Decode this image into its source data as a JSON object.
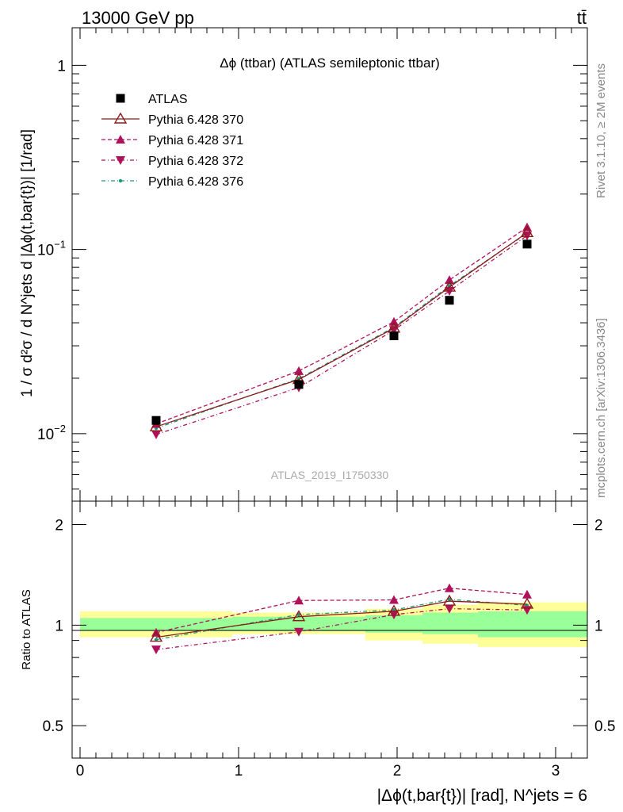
{
  "header": {
    "energy": "13000 GeV pp",
    "process": "tt̄"
  },
  "side": {
    "rivet": "Rivet 3.1.10, ≥ 2M events",
    "mcplots": "mcplots.cern.ch [arXiv:1306.3436]"
  },
  "chart_data": [
    {
      "type": "scatter",
      "title": "Δϕ (ttbar) (ATLAS semileptonic ttbar)",
      "ylabel": "1 / σ d²σ / d N^jets d |Δϕ(t,bar{t})| [1/rad]",
      "xlabel": "|Δϕ(t,bar{t})| [rad], N^jets = 6",
      "watermark": "ATLAS_2019_I1750330",
      "yscale": "log",
      "xlim": [
        -0.05,
        3.2
      ],
      "ylim": [
        0.0043,
        1.6
      ],
      "x_ticks": [
        "0",
        "1",
        "2",
        "3"
      ],
      "y_ticks": [
        "1",
        "10^-1",
        "10^-2"
      ],
      "legend": "top-left",
      "x": [
        0.48,
        1.38,
        1.98,
        2.33,
        2.82
      ],
      "bins": [
        [
          0,
          0.96
        ],
        [
          0.96,
          1.8
        ],
        [
          1.8,
          2.16
        ],
        [
          2.16,
          2.51
        ],
        [
          2.51,
          3.2
        ]
      ],
      "series": [
        {
          "name": "ATLAS",
          "values": [
            0.0118,
            0.0185,
            0.034,
            0.053,
            0.107
          ],
          "color": "#000000",
          "marker": "square"
        },
        {
          "name": "Pythia 6.428 370",
          "values": [
            0.0109,
            0.0197,
            0.0374,
            0.0625,
            0.1235
          ],
          "color": "#8b1a1a",
          "marker": "open-triangle",
          "dash": "solid"
        },
        {
          "name": "Pythia 6.428 371",
          "values": [
            0.0113,
            0.0219,
            0.0405,
            0.0683,
            0.132
          ],
          "color": "#b0125a",
          "marker": "triangle-up",
          "dash": "dashed"
        },
        {
          "name": "Pythia 6.428 372",
          "values": [
            0.0099,
            0.0178,
            0.0365,
            0.0595,
            0.119
          ],
          "color": "#b0125a",
          "marker": "triangle-down",
          "dash": "dashdot"
        },
        {
          "name": "Pythia 6.428 376",
          "values": [
            0.0107,
            0.0199,
            0.0378,
            0.0635,
            0.1225
          ],
          "color": "#1a9a7a",
          "marker": "dot",
          "dash": "dashdot"
        }
      ]
    },
    {
      "type": "scatter",
      "ylabel": "Ratio to ATLAS",
      "yscale": "log",
      "xlim": [
        -0.05,
        3.2
      ],
      "ylim": [
        0.4,
        2.35
      ],
      "y_ticks": [
        "2",
        "1",
        "0.5"
      ],
      "x": [
        0.48,
        1.38,
        1.98,
        2.33,
        2.82
      ],
      "band_stat": [
        [
          0.96,
          1.05
        ],
        [
          0.96,
          1.06
        ],
        [
          0.95,
          1.07
        ],
        [
          0.94,
          1.09
        ],
        [
          0.92,
          1.1
        ]
      ],
      "band_total": [
        [
          0.92,
          1.1
        ],
        [
          0.94,
          1.09
        ],
        [
          0.9,
          1.12
        ],
        [
          0.88,
          1.15
        ],
        [
          0.86,
          1.17
        ]
      ],
      "series": [
        {
          "name": "Pythia 6.428 370",
          "values": [
            0.92,
            1.06,
            1.1,
            1.18,
            1.155
          ]
        },
        {
          "name": "Pythia 6.428 371",
          "values": [
            0.95,
            1.185,
            1.19,
            1.29,
            1.235
          ]
        },
        {
          "name": "Pythia 6.428 372",
          "values": [
            0.845,
            0.955,
            1.075,
            1.12,
            1.11
          ]
        },
        {
          "name": "Pythia 6.428 376",
          "values": [
            0.905,
            1.075,
            1.11,
            1.195,
            1.145
          ]
        }
      ]
    }
  ]
}
